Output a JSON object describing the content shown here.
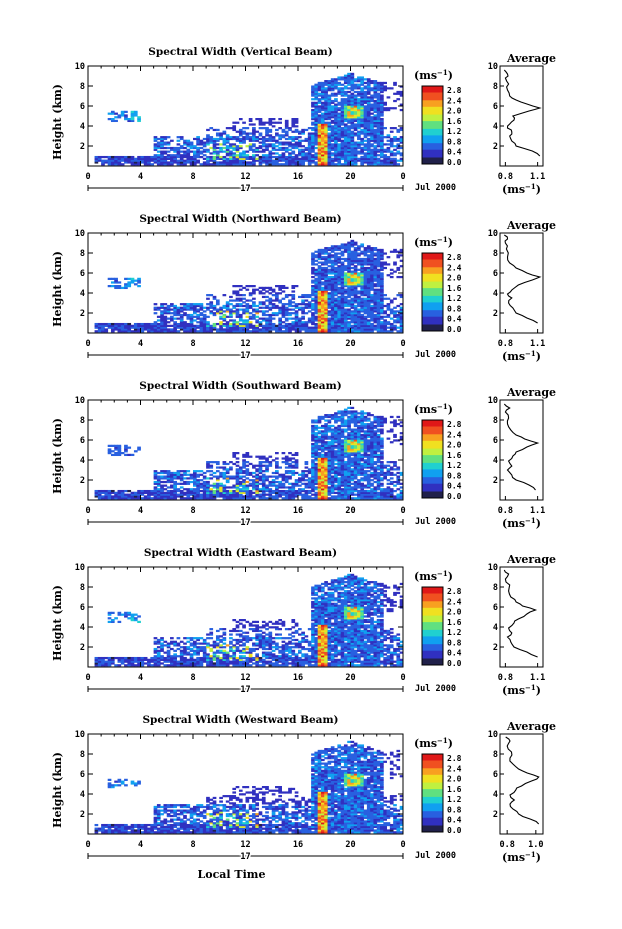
{
  "chart_data": {
    "type": "heatmap",
    "quantity_unit": "(ms⁻¹)",
    "colorbar_ticks": [
      "2.8",
      "2.4",
      "2.0",
      "1.6",
      "1.2",
      "0.8",
      "0.4",
      "0.0"
    ],
    "colorbar_range": [
      0.0,
      2.9
    ],
    "colors": [
      "#20204a",
      "#3030c0",
      "#2860e0",
      "#10a0f0",
      "#20d0d0",
      "#60e080",
      "#c0f040",
      "#f0e020",
      "#f8a020",
      "#f05020",
      "#e01818"
    ],
    "x_range": [
      0,
      24
    ],
    "x_ticks": [
      "0",
      "4",
      "8",
      "12",
      "16",
      "20",
      "0"
    ],
    "y_range": [
      0,
      10
    ],
    "y_ticks": [
      "2",
      "4",
      "6",
      "8",
      "10"
    ],
    "date_label": "17",
    "month_label": "Jul 2000",
    "xlabel": "Local Time",
    "ylabel": "Height (km)",
    "profile_title": "Average",
    "profile_xlabel": "(ms⁻¹)",
    "profile_y_ticks": [
      "2",
      "4",
      "6",
      "8",
      "10"
    ],
    "panels": [
      {
        "title": "Spectral Width (Vertical Beam)",
        "profile_x_ticks": [
          "0.8",
          "1.1"
        ],
        "profile_x_range": [
          0.75,
          1.15
        ],
        "profile": [
          [
            1.12,
            1.0
          ],
          [
            1.05,
            1.5
          ],
          [
            0.9,
            2.0
          ],
          [
            0.86,
            2.5
          ],
          [
            0.84,
            3.0
          ],
          [
            0.86,
            3.4
          ],
          [
            0.82,
            3.8
          ],
          [
            0.84,
            4.2
          ],
          [
            0.88,
            4.6
          ],
          [
            0.87,
            5.0
          ],
          [
            1.02,
            5.5
          ],
          [
            1.12,
            5.8
          ],
          [
            1.0,
            6.2
          ],
          [
            0.9,
            6.6
          ],
          [
            0.84,
            7.0
          ],
          [
            0.82,
            7.6
          ],
          [
            0.83,
            8.2
          ],
          [
            0.8,
            8.8
          ],
          [
            0.82,
            9.2
          ],
          [
            0.79,
            9.6
          ]
        ]
      },
      {
        "title": "Spectral Width (Northward Beam)",
        "profile_x_ticks": [
          "0.8",
          "1.1"
        ],
        "profile_x_range": [
          0.75,
          1.15
        ],
        "profile": [
          [
            1.1,
            1.0
          ],
          [
            1.0,
            1.5
          ],
          [
            0.9,
            2.0
          ],
          [
            0.87,
            2.5
          ],
          [
            0.83,
            3.0
          ],
          [
            0.86,
            3.5
          ],
          [
            0.82,
            3.9
          ],
          [
            0.86,
            4.3
          ],
          [
            0.92,
            4.8
          ],
          [
            1.05,
            5.3
          ],
          [
            1.12,
            5.6
          ],
          [
            1.0,
            6.0
          ],
          [
            0.9,
            6.5
          ],
          [
            0.84,
            7.0
          ],
          [
            0.82,
            7.6
          ],
          [
            0.81,
            8.4
          ],
          [
            0.8,
            9.0
          ],
          [
            0.82,
            9.4
          ],
          [
            0.79,
            9.8
          ]
        ]
      },
      {
        "title": "Spectral Width (Southward Beam)",
        "profile_x_ticks": [
          "0.8",
          "1.1"
        ],
        "profile_x_range": [
          0.75,
          1.15
        ],
        "profile": [
          [
            1.08,
            1.0
          ],
          [
            1.02,
            1.5
          ],
          [
            0.9,
            2.0
          ],
          [
            0.86,
            2.5
          ],
          [
            0.82,
            3.0
          ],
          [
            0.86,
            3.4
          ],
          [
            0.83,
            3.9
          ],
          [
            0.87,
            4.4
          ],
          [
            0.9,
            4.8
          ],
          [
            1.0,
            5.3
          ],
          [
            1.1,
            5.7
          ],
          [
            0.98,
            6.1
          ],
          [
            0.9,
            6.5
          ],
          [
            0.85,
            7.0
          ],
          [
            0.82,
            7.6
          ],
          [
            0.83,
            8.2
          ],
          [
            0.8,
            8.8
          ],
          [
            0.84,
            9.2
          ],
          [
            0.79,
            9.6
          ]
        ]
      },
      {
        "title": "Spectral Width (Eastward Beam)",
        "profile_x_ticks": [
          "0.8",
          "1.1"
        ],
        "profile_x_range": [
          0.75,
          1.15
        ],
        "profile": [
          [
            1.1,
            1.0
          ],
          [
            1.0,
            1.5
          ],
          [
            0.88,
            2.0
          ],
          [
            0.85,
            2.5
          ],
          [
            0.82,
            3.0
          ],
          [
            0.86,
            3.4
          ],
          [
            0.83,
            3.9
          ],
          [
            0.88,
            4.4
          ],
          [
            0.92,
            4.8
          ],
          [
            1.0,
            5.3
          ],
          [
            1.08,
            5.7
          ],
          [
            0.96,
            6.1
          ],
          [
            0.9,
            6.5
          ],
          [
            0.85,
            7.0
          ],
          [
            0.83,
            7.6
          ],
          [
            0.84,
            8.2
          ],
          [
            0.8,
            8.8
          ],
          [
            0.83,
            9.3
          ],
          [
            0.79,
            9.7
          ]
        ]
      },
      {
        "title": "Spectral Width (Westward Beam)",
        "profile_x_ticks": [
          "0.8",
          "1.0"
        ],
        "profile_x_range": [
          0.75,
          1.05
        ],
        "profile": [
          [
            1.02,
            1.0
          ],
          [
            0.96,
            1.5
          ],
          [
            0.88,
            2.0
          ],
          [
            0.84,
            2.5
          ],
          [
            0.82,
            3.0
          ],
          [
            0.85,
            3.4
          ],
          [
            0.82,
            3.9
          ],
          [
            0.86,
            4.4
          ],
          [
            0.9,
            4.8
          ],
          [
            0.97,
            5.3
          ],
          [
            1.02,
            5.7
          ],
          [
            0.94,
            6.1
          ],
          [
            0.88,
            6.5
          ],
          [
            0.84,
            7.0
          ],
          [
            0.82,
            7.6
          ],
          [
            0.83,
            8.2
          ],
          [
            0.8,
            8.8
          ],
          [
            0.82,
            9.3
          ],
          [
            0.79,
            9.7
          ]
        ]
      }
    ]
  }
}
